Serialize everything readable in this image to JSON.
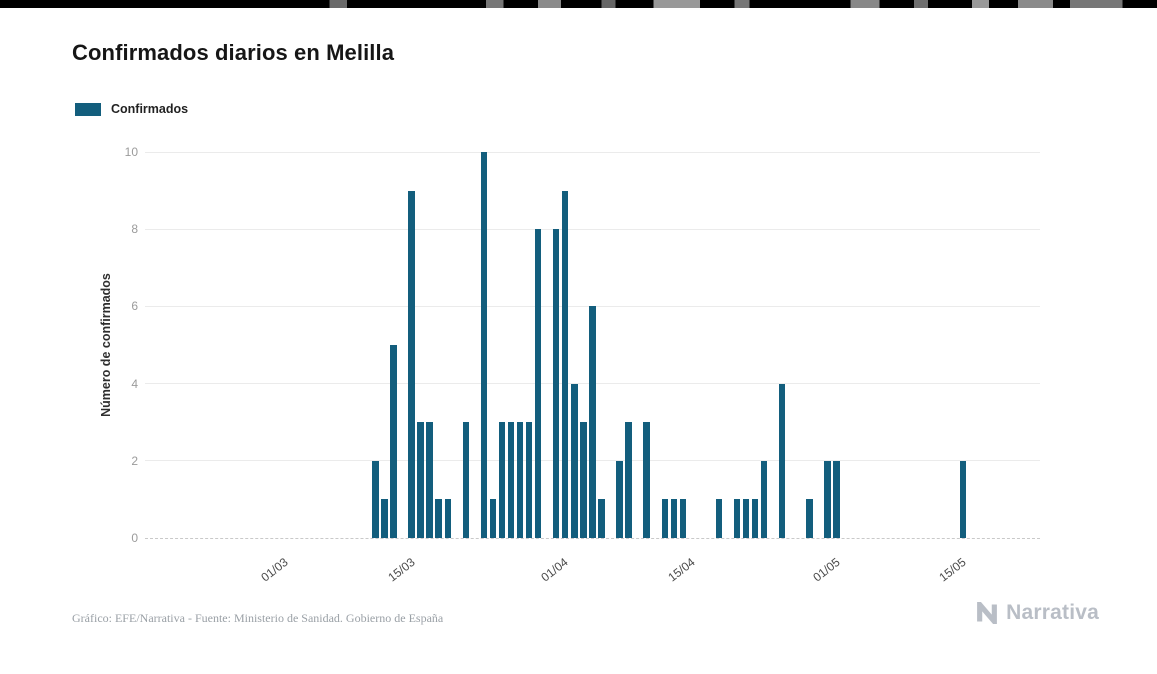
{
  "page": {
    "footer": {
      "credit": "Gráfico: EFE/Narrativa - Fuente: Ministerio de Sanidad. Gobierno de España",
      "brand": "Narrativa"
    }
  },
  "chart_data": {
    "type": "bar",
    "title": "Confirmados diarios en Melilla",
    "xlabel": "",
    "ylabel": "Número de confirmados",
    "ylim": [
      0,
      10
    ],
    "y_ticks": [
      0,
      2,
      4,
      6,
      8,
      10
    ],
    "grid": true,
    "legend": [
      "Confirmados"
    ],
    "legend_position": "top-left",
    "bar_color": "#135E7D",
    "x_axis_padding_days": 14,
    "x_ticks": [
      {
        "label": "01/03",
        "day_index": 0
      },
      {
        "label": "15/03",
        "day_index": 14
      },
      {
        "label": "01/04",
        "day_index": 31
      },
      {
        "label": "15/04",
        "day_index": 45
      },
      {
        "label": "01/05",
        "day_index": 61
      },
      {
        "label": "15/05",
        "day_index": 75
      }
    ],
    "dates": [
      "01/03",
      "02/03",
      "03/03",
      "04/03",
      "05/03",
      "06/03",
      "07/03",
      "08/03",
      "09/03",
      "10/03",
      "11/03",
      "12/03",
      "13/03",
      "14/03",
      "15/03",
      "16/03",
      "17/03",
      "18/03",
      "19/03",
      "20/03",
      "21/03",
      "22/03",
      "23/03",
      "24/03",
      "25/03",
      "26/03",
      "27/03",
      "28/03",
      "29/03",
      "30/03",
      "31/03",
      "01/04",
      "02/04",
      "03/04",
      "04/04",
      "05/04",
      "06/04",
      "07/04",
      "08/04",
      "09/04",
      "10/04",
      "11/04",
      "12/04",
      "13/04",
      "14/04",
      "15/04",
      "16/04",
      "17/04",
      "18/04",
      "19/04",
      "20/04",
      "21/04",
      "22/04",
      "23/04",
      "24/04",
      "25/04",
      "26/04",
      "27/04",
      "28/04",
      "29/04",
      "30/04",
      "01/05",
      "02/05",
      "03/05",
      "04/05",
      "05/05",
      "06/05",
      "07/05",
      "08/05",
      "09/05",
      "10/05",
      "11/05",
      "12/05",
      "13/05",
      "14/05",
      "15/05",
      "16/05",
      "17/05",
      "18/05",
      "19/05",
      "20/05",
      "21/05",
      "22/05",
      "23/05",
      "24/05"
    ],
    "values": [
      0,
      0,
      0,
      0,
      0,
      0,
      0,
      0,
      0,
      0,
      0,
      2,
      1,
      5,
      0,
      9,
      3,
      3,
      1,
      1,
      0,
      3,
      0,
      10,
      1,
      3,
      3,
      3,
      3,
      8,
      0,
      8,
      9,
      4,
      3,
      6,
      1,
      0,
      2,
      3,
      0,
      3,
      0,
      1,
      1,
      1,
      0,
      0,
      0,
      1,
      0,
      1,
      1,
      1,
      2,
      0,
      4,
      0,
      0,
      1,
      0,
      2,
      2,
      0,
      0,
      0,
      0,
      0,
      0,
      0,
      0,
      0,
      0,
      0,
      0,
      0,
      2,
      0,
      0,
      0,
      0,
      0,
      0,
      0,
      0
    ]
  }
}
